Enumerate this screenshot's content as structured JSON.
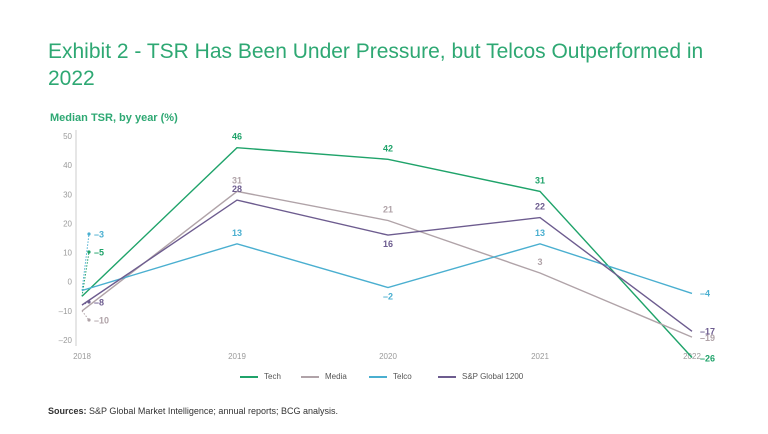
{
  "header": {
    "title": "Exhibit 2 - TSR Has Been Under Pressure, but Telcos Outperformed in 2022",
    "subtitle": "Median TSR, by year (%)"
  },
  "footer": {
    "source_label": "Sources:",
    "source_text": "S&P Global Market Intelligence; annual reports; BCG analysis."
  },
  "colors": {
    "title": "#2ea873",
    "tech": "#1fa36a",
    "media": "#b0a3a8",
    "telco": "#4aafd0",
    "sp": "#6d5c8f",
    "axis": "#cccccc"
  },
  "chart_data": {
    "type": "line",
    "title": "Median TSR, by year (%)",
    "x": [
      "2018",
      "2019",
      "2020",
      "2021",
      "2022"
    ],
    "ylim": [
      -20,
      50
    ],
    "yticks": [
      "50",
      "40",
      "30",
      "20",
      "10",
      "0",
      "–10",
      "–20"
    ],
    "series": [
      {
        "name": "Tech",
        "key": "tech",
        "values": [
          -5,
          46,
          42,
          31,
          -26
        ],
        "labels": [
          "–5",
          "46",
          "42",
          "31",
          "–26"
        ]
      },
      {
        "name": "Media",
        "key": "media",
        "values": [
          -10,
          31,
          21,
          3,
          -19
        ],
        "labels": [
          "–10",
          "31",
          "21",
          "3",
          "–19"
        ]
      },
      {
        "name": "Telco",
        "key": "telco",
        "values": [
          -3,
          13,
          -2,
          13,
          -4
        ],
        "labels": [
          "–3",
          "13",
          "–2",
          "13",
          "–4"
        ]
      },
      {
        "name": "S&P Global 1200",
        "key": "sp",
        "values": [
          -8,
          28,
          16,
          22,
          -17
        ],
        "labels": [
          "–8",
          "28",
          "16",
          "22",
          "–17"
        ]
      }
    ]
  }
}
